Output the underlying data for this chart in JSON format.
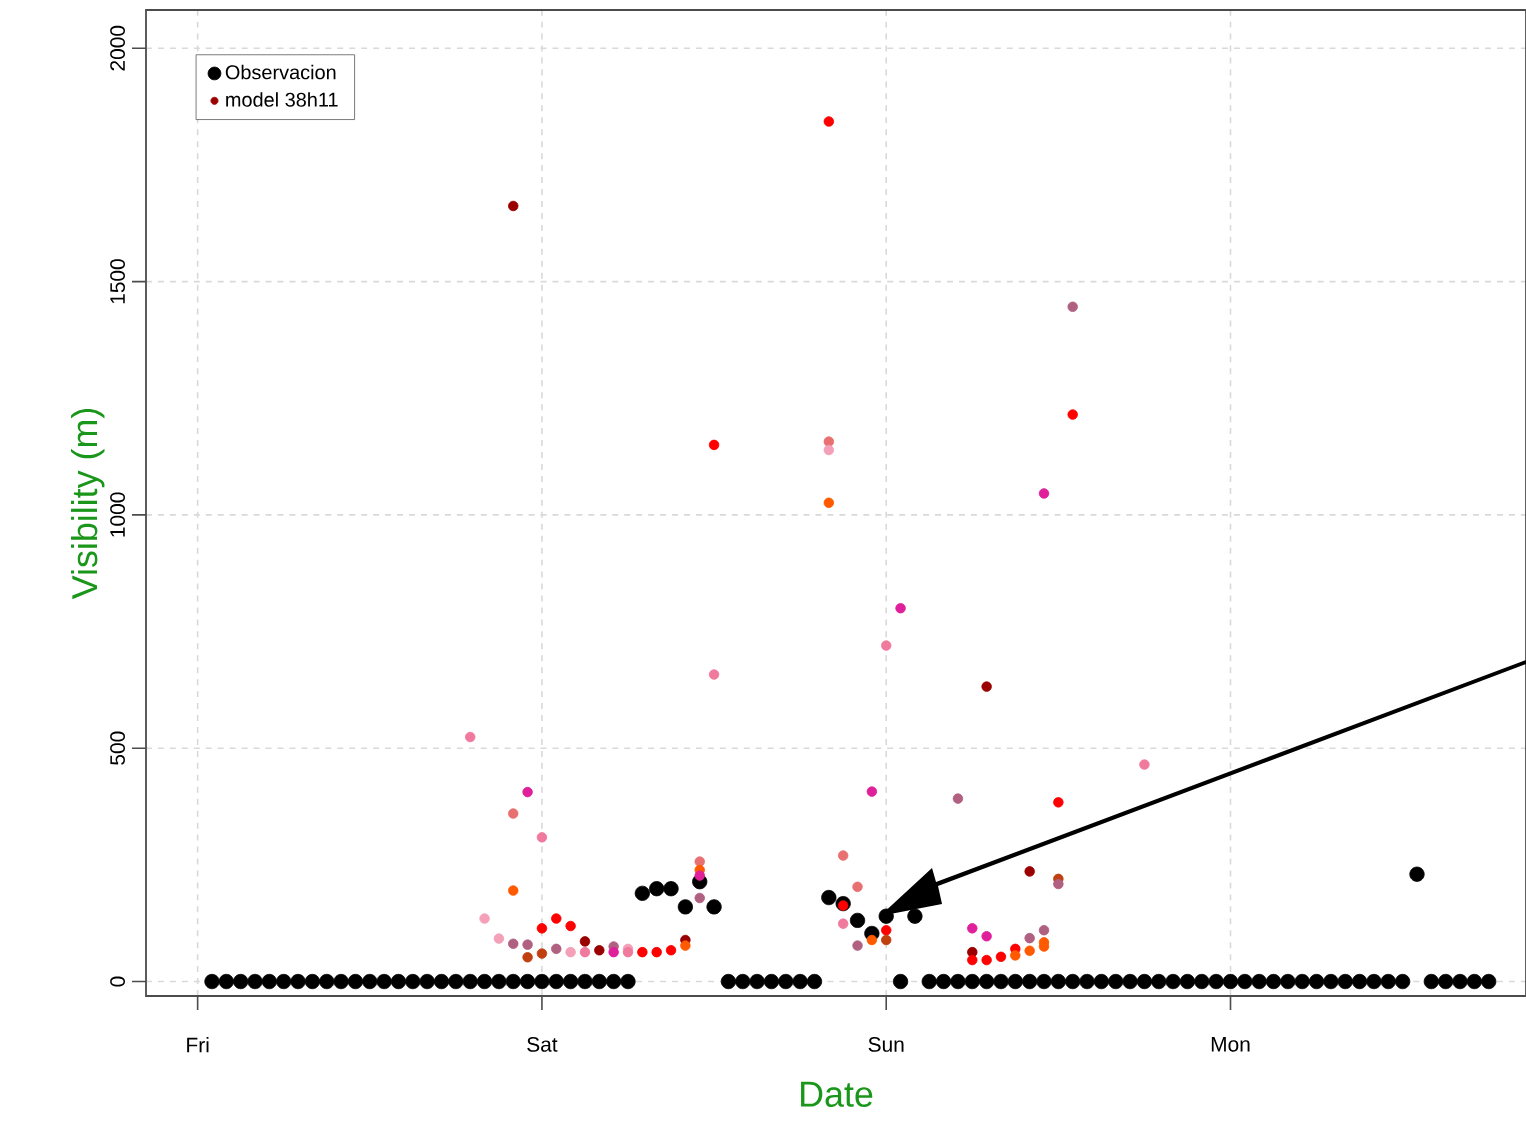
{
  "chart_data": {
    "type": "scatter",
    "xlabel": "Date",
    "ylabel": "Visibility (m)",
    "categories": [
      null,
      null,
      null,
      "Fri",
      null,
      null,
      null,
      null,
      null,
      null,
      null,
      null,
      null,
      null,
      null,
      null,
      null,
      null,
      null,
      null,
      null,
      null,
      null,
      null,
      null,
      null,
      null,
      "Sat",
      null,
      null,
      null,
      null,
      null,
      null,
      null,
      null,
      null,
      null,
      null,
      null,
      null,
      null,
      null,
      null,
      null,
      null,
      null,
      null,
      null,
      null,
      null,
      "Sun",
      null,
      null,
      null,
      null,
      null,
      null,
      null,
      null,
      null,
      null,
      null,
      null,
      null,
      null,
      null,
      null,
      null,
      null,
      null,
      null,
      null,
      null,
      null,
      "Mon",
      null,
      null,
      null,
      null,
      null,
      null,
      null,
      null,
      null,
      null,
      null,
      null,
      null,
      null,
      null,
      null,
      null,
      null,
      null,
      null
    ],
    "ylim": [
      -31,
      2082
    ],
    "yticks": [
      0,
      500,
      1000,
      1500,
      2000
    ],
    "grid": true,
    "legend": "top left",
    "series": [
      {
        "name": "Observacion",
        "color": "#000000",
        "values": [
          null,
          null,
          null,
          null,
          0,
          0,
          0,
          0,
          0,
          0,
          0,
          0,
          0,
          0,
          0,
          0,
          0,
          0,
          0,
          0,
          0,
          0,
          0,
          0,
          0,
          0,
          0,
          0,
          0,
          0,
          0,
          0,
          0,
          0,
          189,
          199,
          199,
          160,
          214,
          160,
          0,
          0,
          0,
          0,
          0,
          0,
          0,
          180,
          167,
          131,
          103,
          140,
          0,
          140,
          0,
          0,
          0,
          0,
          0,
          0,
          0,
          0,
          0,
          0,
          0,
          0,
          0,
          0,
          0,
          0,
          0,
          0,
          0,
          0,
          0,
          0,
          0,
          0,
          0,
          0,
          0,
          0,
          0,
          0,
          0,
          0,
          0,
          0,
          230,
          0,
          0,
          0,
          0,
          0,
          null,
          null
        ]
      },
      {
        "name": "model 38h11",
        "color": "#9a0000",
        "values": [
          null,
          null,
          null,
          null,
          null,
          null,
          null,
          null,
          null,
          null,
          null,
          null,
          null,
          null,
          null,
          null,
          null,
          null,
          null,
          null,
          null,
          null,
          524,
          135,
          92,
          360,
          406,
          309,
          135,
          119,
          86,
          67,
          75,
          70,
          63,
          63,
          67,
          89,
          257,
          1150,
          null,
          null,
          null,
          null,
          null,
          null,
          null,
          1843,
          270,
          203,
          407,
          720,
          800,
          null,
          null,
          null,
          392,
          114,
          632,
          53,
          70,
          236,
          1046,
          384,
          1446,
          null,
          null,
          null,
          null,
          465,
          null,
          null,
          null,
          null,
          null,
          null,
          null,
          null,
          null,
          null,
          null,
          null,
          null,
          null,
          null,
          null,
          null,
          null,
          null,
          null,
          null,
          null,
          null,
          null,
          null,
          null
        ],
        "colors": [
          null,
          null,
          null,
          null,
          null,
          null,
          null,
          null,
          null,
          null,
          null,
          null,
          null,
          null,
          null,
          null,
          null,
          null,
          null,
          null,
          null,
          null,
          "#f07a9e",
          "#f4a0b8",
          "#f4a0b8",
          "#e87070",
          "#e0209a",
          "#f07a9e",
          "#ff0000",
          "#ff0000",
          "#9a0000",
          "#9a0000",
          "#b06080",
          "#f4a0b8",
          "#ff0000",
          "#ff0000",
          "#ff0000",
          "#9a0000",
          "#e87070",
          "#ff0000",
          null,
          null,
          null,
          null,
          null,
          null,
          null,
          "#ff0000",
          "#e87070",
          "#e87070",
          "#e0209a",
          "#f07a9e",
          "#e0209a",
          null,
          null,
          null,
          "#b06080",
          "#e0209a",
          "#9a0000",
          "#ff0000",
          "#ff0000",
          "#9a0000",
          "#e0209a",
          "#ff0000",
          "#b06080",
          null,
          null,
          null,
          null,
          "#f07a9e",
          null,
          null,
          null,
          null,
          null,
          null,
          null,
          null,
          null,
          null,
          null,
          null,
          null,
          null,
          null,
          null,
          null,
          null,
          null,
          null,
          null,
          null,
          null,
          null,
          null,
          null
        ]
      },
      {
        "color": "#9a0000",
        "values": [
          null,
          null,
          null,
          null,
          null,
          null,
          null,
          null,
          null,
          null,
          null,
          null,
          null,
          null,
          null,
          null,
          null,
          null,
          null,
          null,
          null,
          null,
          null,
          null,
          null,
          195,
          79,
          114,
          70,
          63,
          63,
          null,
          63,
          63,
          null,
          null,
          null,
          77,
          239,
          658,
          null,
          null,
          null,
          null,
          null,
          null,
          null,
          1157,
          163,
          77,
          89,
          110,
          null,
          null,
          null,
          null,
          null,
          63,
          97,
          null,
          56,
          93,
          110,
          220,
          1215,
          null,
          null,
          null,
          null,
          null,
          null,
          null,
          null,
          null,
          null,
          null,
          null,
          null,
          null,
          null,
          null,
          null,
          null,
          null,
          null,
          null,
          null,
          null,
          null,
          null,
          null,
          null,
          null,
          null,
          null,
          null
        ],
        "colors": [
          null,
          null,
          null,
          null,
          null,
          null,
          null,
          null,
          null,
          null,
          null,
          null,
          null,
          null,
          null,
          null,
          null,
          null,
          null,
          null,
          null,
          null,
          null,
          null,
          null,
          "#ff5a00",
          "#b06080",
          "#ff0000",
          "#b06080",
          "#f4a0b8",
          "#f07a9e",
          null,
          "#e0209a",
          "#f07a9e",
          null,
          null,
          null,
          "#ff5a00",
          "#ff5a00",
          "#f07a9e",
          null,
          null,
          null,
          null,
          null,
          null,
          null,
          "#e87070",
          "#ff0000",
          "#b06080",
          "#ff5a00",
          "#ff0000",
          null,
          null,
          null,
          null,
          null,
          "#9a0000",
          "#e0209a",
          null,
          "#ff5a00",
          "#b06080",
          "#b06080",
          "#c04010",
          "#ff0000",
          null,
          null,
          null,
          null,
          null,
          null,
          null,
          null,
          null,
          null,
          null,
          null,
          null,
          null,
          null,
          null,
          null,
          null,
          null,
          null,
          null,
          null,
          null,
          null,
          null,
          null,
          null,
          null,
          null,
          null,
          null
        ]
      },
      {
        "color": "#9a0000",
        "values": [
          null,
          null,
          null,
          null,
          null,
          null,
          null,
          null,
          null,
          null,
          null,
          null,
          null,
          null,
          null,
          null,
          null,
          null,
          null,
          null,
          null,
          null,
          null,
          null,
          null,
          81,
          52,
          60,
          null,
          null,
          null,
          null,
          null,
          null,
          null,
          null,
          null,
          null,
          227,
          null,
          null,
          null,
          null,
          null,
          null,
          null,
          null,
          1139,
          124,
          null,
          null,
          89,
          null,
          null,
          null,
          null,
          null,
          46,
          46,
          null,
          null,
          66,
          84,
          209,
          null,
          null,
          null,
          null,
          null,
          null,
          null,
          null,
          null,
          null,
          null,
          null,
          null,
          null,
          null,
          null,
          null,
          null,
          null,
          null,
          null,
          null,
          null,
          null,
          null,
          null,
          null,
          null,
          null,
          null,
          null,
          null
        ],
        "colors": [
          null,
          null,
          null,
          null,
          null,
          null,
          null,
          null,
          null,
          null,
          null,
          null,
          null,
          null,
          null,
          null,
          null,
          null,
          null,
          null,
          null,
          null,
          null,
          null,
          null,
          "#b06080",
          "#c04010",
          "#c04010",
          null,
          null,
          null,
          null,
          null,
          null,
          null,
          null,
          null,
          null,
          "#e0209a",
          null,
          null,
          null,
          null,
          null,
          null,
          null,
          null,
          "#f4a0b8",
          "#f07a9e",
          null,
          null,
          "#c04010",
          null,
          null,
          null,
          null,
          null,
          "#ff0000",
          "#ff0000",
          null,
          null,
          "#ff5a00",
          "#ff5a00",
          "#b06080",
          null,
          null,
          null,
          null,
          null,
          null,
          null,
          null,
          null,
          null,
          null,
          null,
          null,
          null,
          null,
          null,
          null,
          null,
          null,
          null,
          null,
          null,
          null,
          null,
          null,
          null,
          null,
          null,
          null,
          null,
          null,
          null
        ]
      },
      {
        "color": "#9a0000",
        "values": [
          null,
          null,
          null,
          null,
          null,
          null,
          null,
          null,
          null,
          null,
          null,
          null,
          null,
          null,
          null,
          null,
          null,
          null,
          null,
          null,
          null,
          null,
          null,
          null,
          null,
          1662,
          null,
          null,
          null,
          null,
          null,
          null,
          null,
          null,
          null,
          null,
          null,
          null,
          179,
          null,
          null,
          null,
          null,
          null,
          null,
          null,
          null,
          1026,
          null,
          null,
          null,
          null,
          null,
          null,
          null,
          null,
          null,
          null,
          null,
          null,
          null,
          null,
          75,
          null,
          null,
          null,
          null,
          null,
          null,
          null,
          null,
          null,
          null,
          null,
          null,
          null,
          null,
          null,
          null,
          null,
          null,
          null,
          null,
          null,
          null,
          null,
          null,
          null,
          null,
          null,
          null,
          null,
          null,
          null,
          null,
          null
        ],
        "colors": [
          null,
          null,
          null,
          null,
          null,
          null,
          null,
          null,
          null,
          null,
          null,
          null,
          null,
          null,
          null,
          null,
          null,
          null,
          null,
          null,
          null,
          null,
          null,
          null,
          null,
          "#9a0000",
          null,
          null,
          null,
          null,
          null,
          null,
          null,
          null,
          null,
          null,
          null,
          null,
          "#b06080",
          null,
          null,
          null,
          null,
          null,
          null,
          null,
          null,
          "#ff5a00",
          null,
          null,
          null,
          null,
          null,
          null,
          null,
          null,
          null,
          null,
          null,
          null,
          null,
          null,
          "#ff5a00",
          null,
          null,
          null,
          null,
          null,
          null,
          null,
          null,
          null,
          null,
          null,
          null,
          null,
          null,
          null,
          null,
          null,
          null,
          null,
          null,
          null,
          null,
          null,
          null,
          null,
          null,
          null,
          null,
          null,
          null,
          null,
          null,
          null
        ]
      }
    ]
  }
}
